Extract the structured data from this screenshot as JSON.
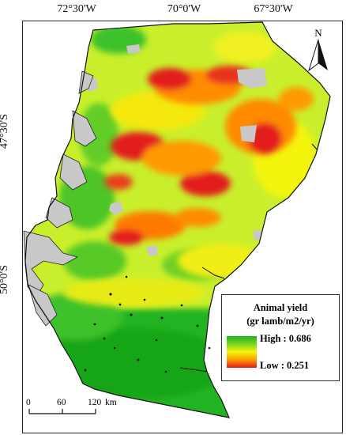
{
  "graticule": {
    "longitudes": [
      "72°30'W",
      "70°0'W",
      "67°30'W"
    ],
    "latitudes": [
      "47°30'S",
      "50°0'S"
    ]
  },
  "legend": {
    "title_line1": "Animal yield",
    "title_line2": "(gr lamb/m2/yr)",
    "high_label": "High : 0.686",
    "low_label": "Low : 0.251",
    "high_value": 0.686,
    "low_value": 0.251,
    "ramp_colors": [
      "#1db21d",
      "#7ed321",
      "#f4f40d",
      "#ff9a00",
      "#e31a1c"
    ]
  },
  "north_arrow": {
    "letter": "N"
  },
  "scale_bar": {
    "ticks": [
      "0",
      "60",
      "120"
    ],
    "unit": "km"
  },
  "colors": {
    "no_data": "#c8c8c8",
    "high": "#1db21d",
    "mid": "#f4f40d",
    "low": "#e31a1c"
  }
}
